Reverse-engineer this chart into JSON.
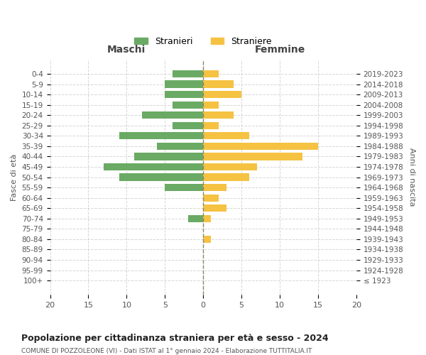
{
  "age_groups": [
    "100+",
    "95-99",
    "90-94",
    "85-89",
    "80-84",
    "75-79",
    "70-74",
    "65-69",
    "60-64",
    "55-59",
    "50-54",
    "45-49",
    "40-44",
    "35-39",
    "30-34",
    "25-29",
    "20-24",
    "15-19",
    "10-14",
    "5-9",
    "0-4"
  ],
  "birth_years": [
    "≤ 1923",
    "1924-1928",
    "1929-1933",
    "1934-1938",
    "1939-1943",
    "1944-1948",
    "1949-1953",
    "1954-1958",
    "1959-1963",
    "1964-1968",
    "1969-1973",
    "1974-1978",
    "1979-1983",
    "1984-1988",
    "1989-1993",
    "1994-1998",
    "1999-2003",
    "2004-2008",
    "2009-2013",
    "2014-2018",
    "2019-2023"
  ],
  "males": [
    0,
    0,
    0,
    0,
    0,
    0,
    2,
    0,
    0,
    5,
    11,
    13,
    9,
    6,
    11,
    4,
    8,
    4,
    5,
    5,
    4
  ],
  "females": [
    0,
    0,
    0,
    0,
    1,
    0,
    1,
    3,
    2,
    3,
    6,
    7,
    13,
    15,
    6,
    2,
    4,
    2,
    5,
    4,
    2
  ],
  "male_color": "#6aaa64",
  "female_color": "#f5c242",
  "title": "Popolazione per cittadinanza straniera per età e sesso - 2024",
  "subtitle": "COMUNE DI POZZOLEONE (VI) - Dati ISTAT al 1° gennaio 2024 - Elaborazione TUTTITALIA.IT",
  "xlabel_left": "Maschi",
  "xlabel_right": "Femmine",
  "ylabel_left": "Fasce di età",
  "ylabel_right": "Anni di nascita",
  "legend_male": "Stranieri",
  "legend_female": "Straniere",
  "xlim": 20,
  "background_color": "#ffffff",
  "grid_color": "#cccccc"
}
